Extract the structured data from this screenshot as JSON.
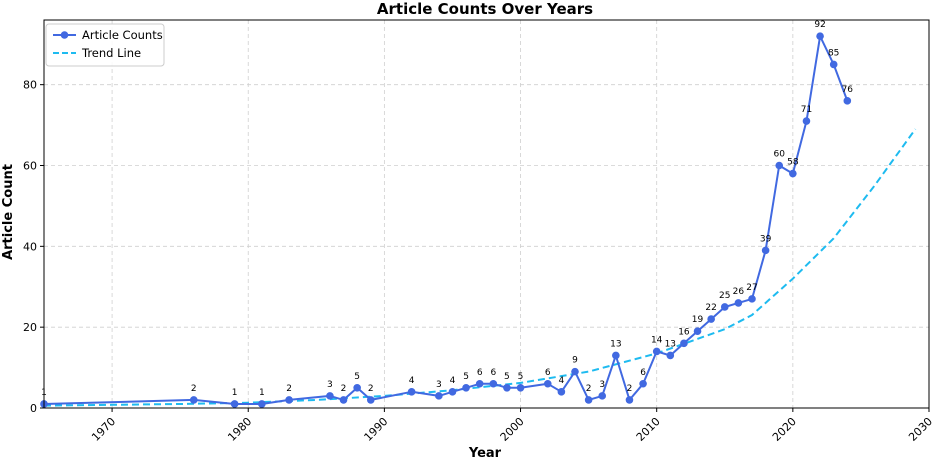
{
  "chart_data": {
    "type": "line",
    "title": "Article Counts Over Years",
    "xlabel": "Year",
    "ylabel": "Article Count",
    "xlim": [
      1965,
      2030
    ],
    "ylim": [
      0,
      96
    ],
    "xticks": [
      1970,
      1980,
      1990,
      2000,
      2010,
      2020,
      2030
    ],
    "yticks": [
      0,
      20,
      40,
      60,
      80
    ],
    "grid": true,
    "legend": "top-left",
    "series": [
      {
        "name": "Article Counts",
        "kind": "line-markers",
        "color": "#4169e1",
        "x": [
          1965,
          1976,
          1979,
          1981,
          1983,
          1986,
          1987,
          1988,
          1989,
          1992,
          1994,
          1995,
          1996,
          1997,
          1998,
          1999,
          2000,
          2002,
          2003,
          2004,
          2005,
          2006,
          2007,
          2008,
          2009,
          2010,
          2011,
          2012,
          2013,
          2014,
          2015,
          2016,
          2017,
          2018,
          2019,
          2020,
          2021,
          2022,
          2023,
          2024
        ],
        "y": [
          1,
          2,
          1,
          1,
          2,
          3,
          2,
          5,
          2,
          4,
          3,
          4,
          5,
          6,
          6,
          5,
          5,
          6,
          4,
          9,
          2,
          3,
          13,
          2,
          6,
          14,
          13,
          16,
          19,
          22,
          25,
          26,
          27,
          39,
          60,
          58,
          71,
          92,
          85,
          76
        ]
      },
      {
        "name": "Trend Line",
        "kind": "dashed-line",
        "color": "#1ebbf0",
        "x": [
          1965,
          1970,
          1975,
          1980,
          1985,
          1990,
          1995,
          2000,
          2005,
          2010,
          2015,
          2017,
          2020,
          2023,
          2026,
          2029
        ],
        "y": [
          0.6,
          0.8,
          1.0,
          1.3,
          2.0,
          3.0,
          4.4,
          6.2,
          9.0,
          13.5,
          19.5,
          23.0,
          32.0,
          42.0,
          55.0,
          69.0
        ]
      }
    ]
  }
}
